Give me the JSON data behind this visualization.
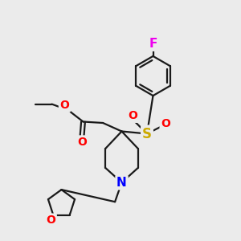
{
  "background_color": "#ebebeb",
  "bond_color": "#1a1a1a",
  "atom_colors": {
    "F": "#ee00ee",
    "O": "#ff0000",
    "S": "#ccaa00",
    "N": "#0000ff"
  },
  "bond_width": 1.6,
  "font_size_atom": 10
}
